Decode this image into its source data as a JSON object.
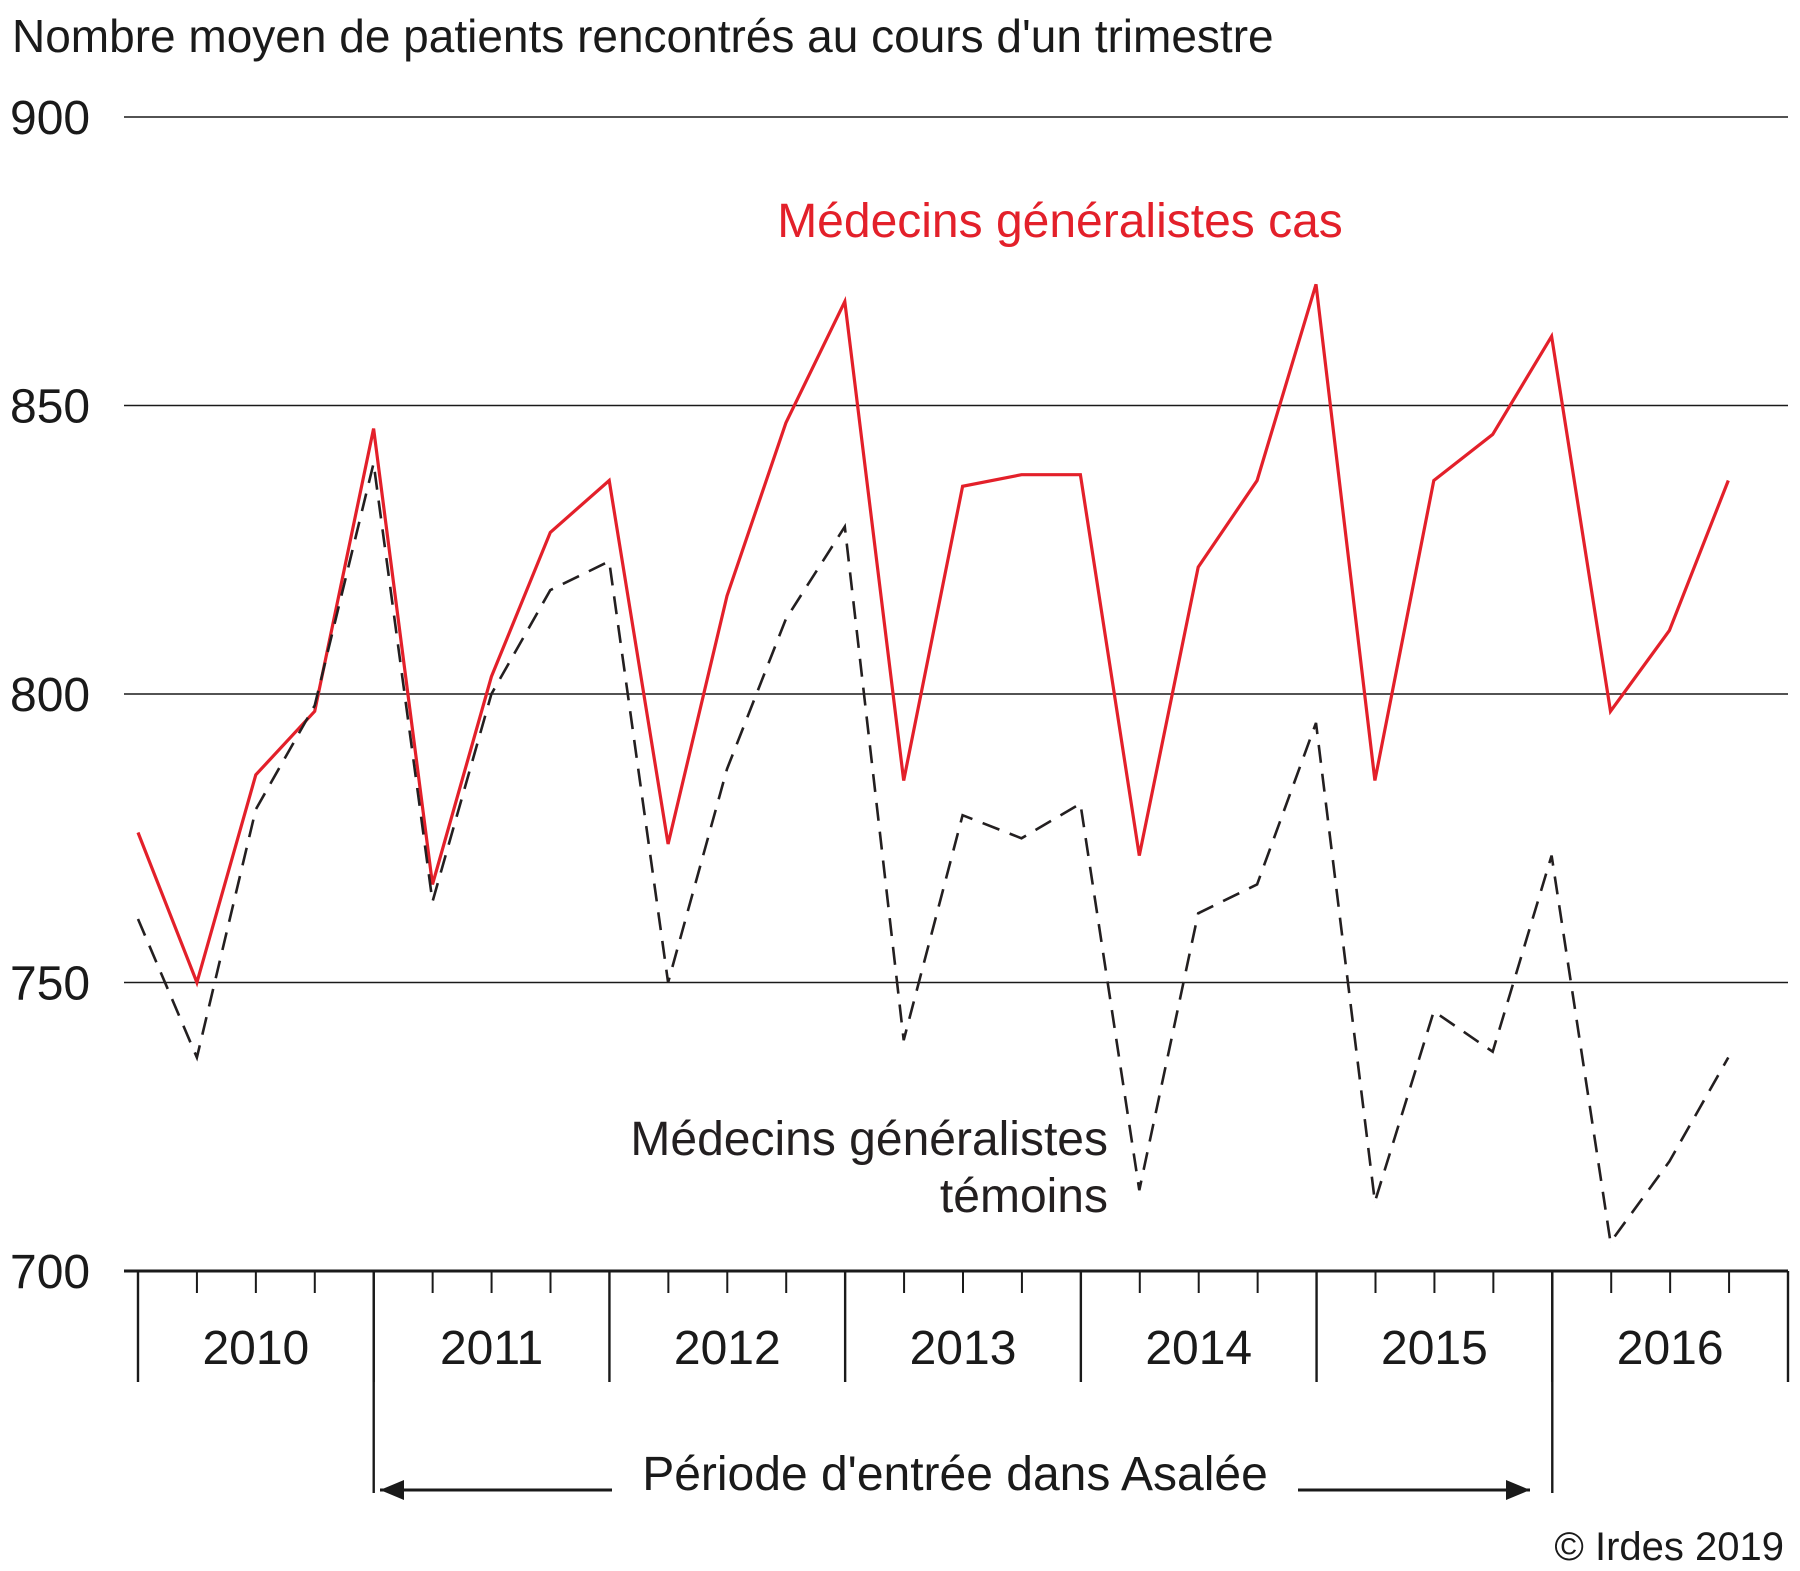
{
  "chart_data": {
    "type": "line",
    "title": "Nombre moyen de patients rencontrés au cours d'un trimestre",
    "y_ticks": [
      "900",
      "850",
      "800",
      "750",
      "700"
    ],
    "ylim": [
      700,
      900
    ],
    "grid": "horizontal",
    "years": [
      "2010",
      "2011",
      "2012",
      "2013",
      "2014",
      "2015",
      "2016"
    ],
    "quarters_per_year": 4,
    "x": [
      "2010-T1",
      "2010-T2",
      "2010-T3",
      "2010-T4",
      "2011-T1",
      "2011-T2",
      "2011-T3",
      "2011-T4",
      "2012-T1",
      "2012-T2",
      "2012-T3",
      "2012-T4",
      "2013-T1",
      "2013-T2",
      "2013-T3",
      "2013-T4",
      "2014-T1",
      "2014-T2",
      "2014-T3",
      "2014-T4",
      "2015-T1",
      "2015-T2",
      "2015-T3",
      "2015-T4",
      "2016-T1",
      "2016-T2",
      "2016-T3",
      "2016-T4"
    ],
    "series": [
      {
        "name": "Médecins généralistes cas",
        "color": "#e3202a",
        "style": "solid",
        "values": [
          776,
          750,
          786,
          797,
          846,
          767,
          803,
          828,
          837,
          774,
          817,
          847,
          868,
          785,
          836,
          838,
          838,
          772,
          822,
          837,
          871,
          785,
          837,
          845,
          862,
          797,
          811,
          837
        ]
      },
      {
        "name": "Médecins généralistes témoins",
        "color": "#231f20",
        "style": "dashed",
        "values": [
          761,
          737,
          780,
          798,
          840,
          764,
          800,
          818,
          823,
          750,
          787,
          813,
          829,
          740,
          779,
          775,
          781,
          714,
          762,
          767,
          795,
          712,
          745,
          738,
          772,
          705,
          719,
          737
        ]
      }
    ],
    "series_labels": {
      "cas": "Médecins généralistes cas",
      "temoins_line1": "Médecins généralistes",
      "temoins_line2": "témoins"
    },
    "annotation": "Période d'entrée dans Asalée",
    "credit": "© Irdes 2019"
  }
}
